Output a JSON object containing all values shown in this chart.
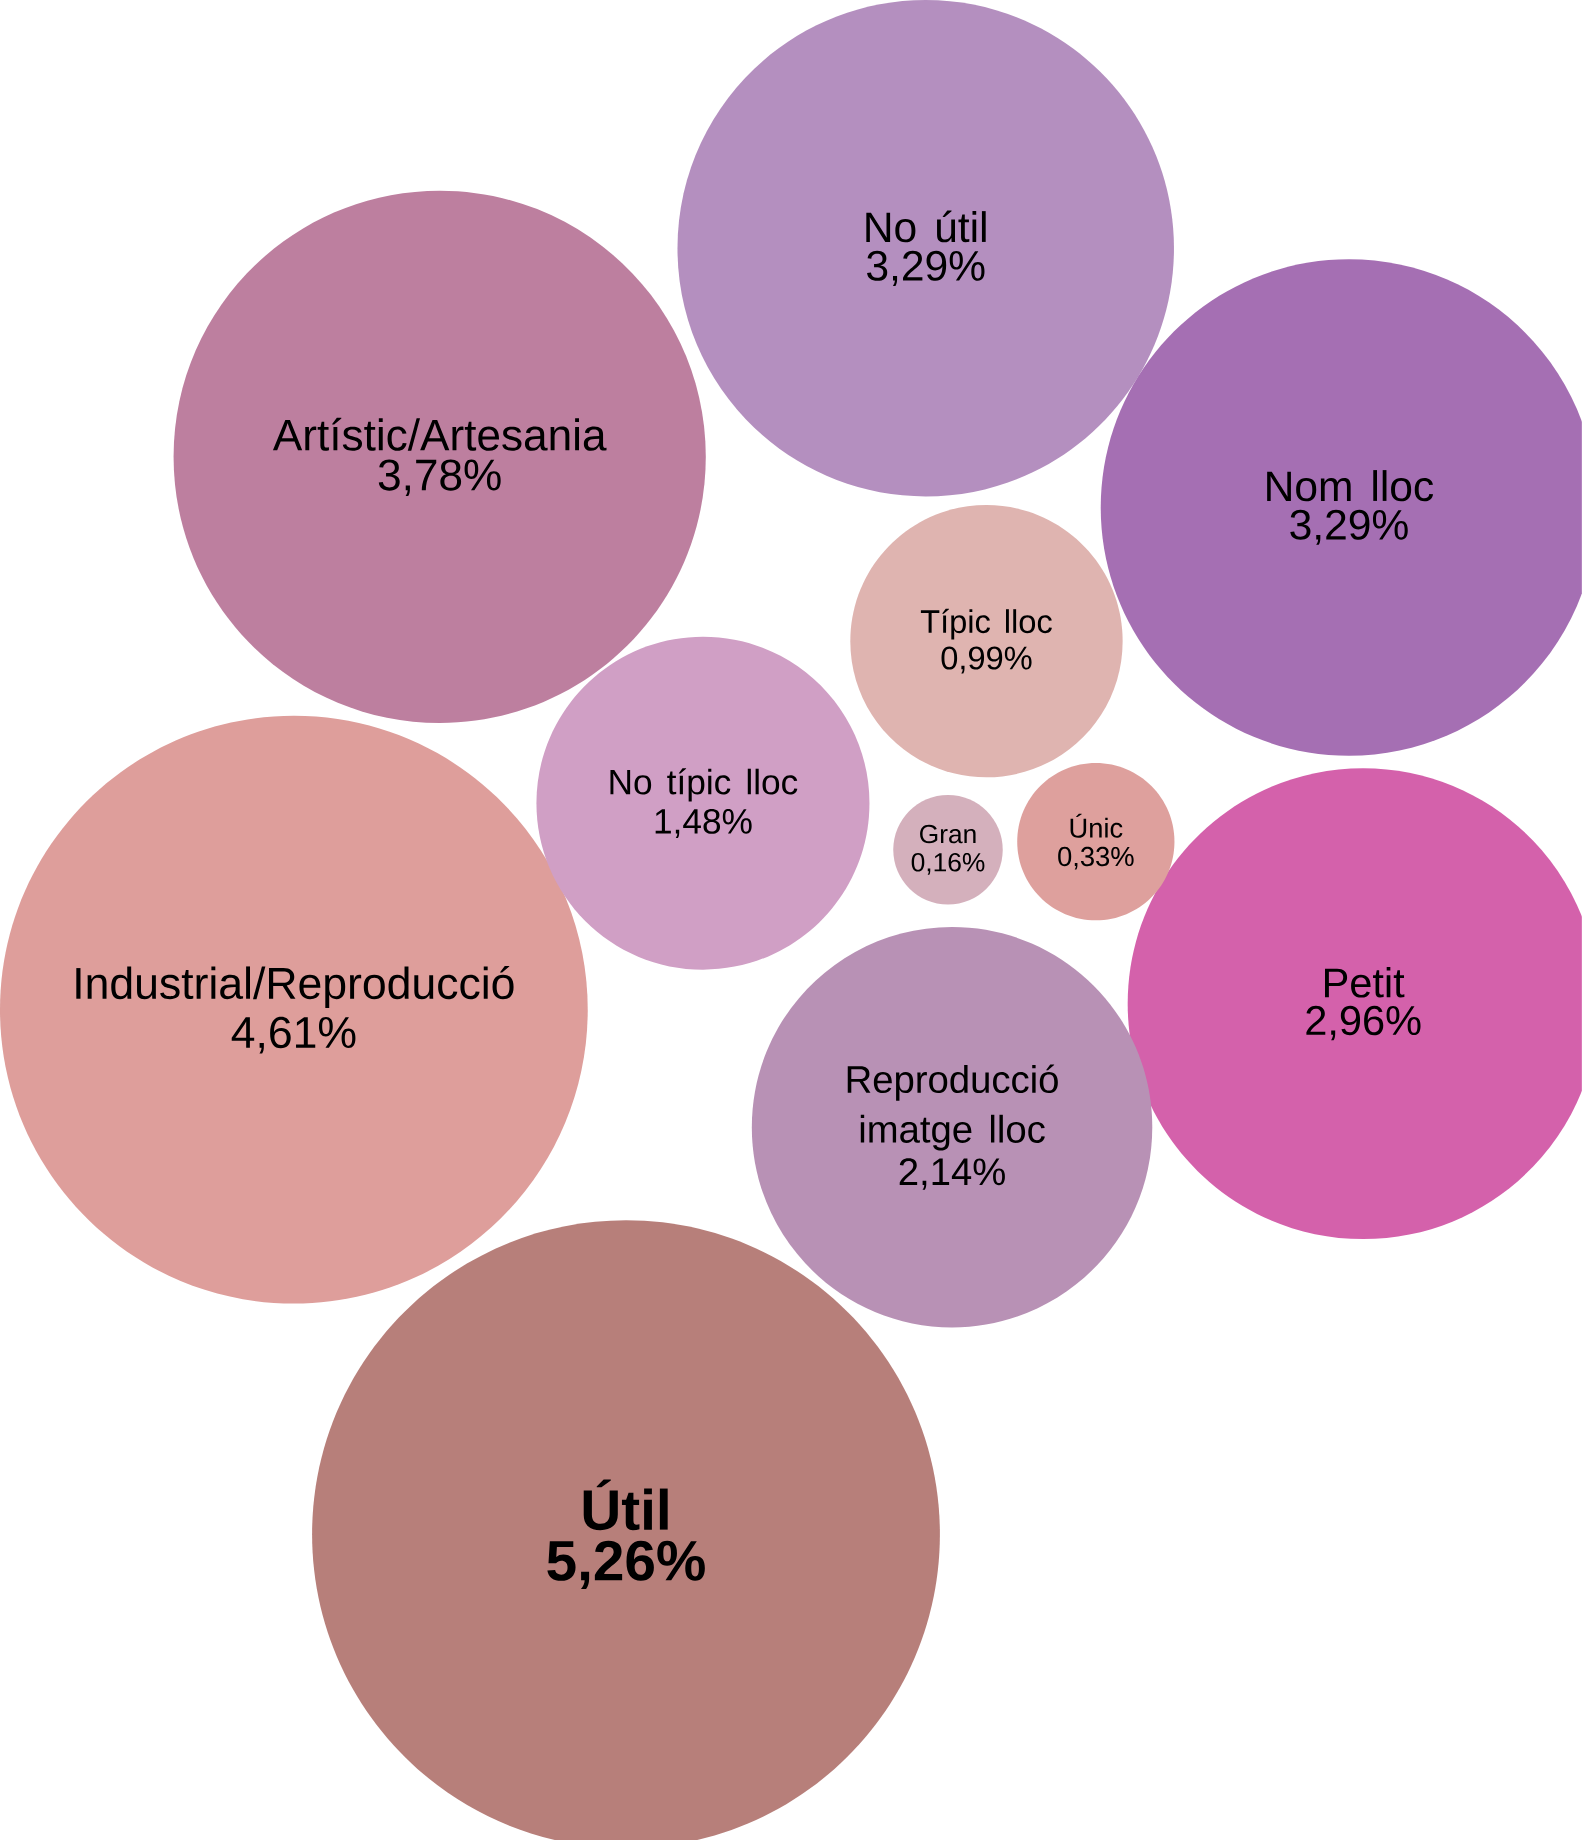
{
  "chart_data": {
    "type": "other",
    "categories": [
      "Útil",
      "Industrial/Reproducció",
      "Artístic/Artesania",
      "No útil",
      "Nom lloc",
      "Petit",
      "Reproducció imatge lloc",
      "No típic lloc",
      "Típic lloc",
      "Gran",
      "Únic"
    ],
    "values": [
      5.26,
      4.61,
      3.78,
      3.29,
      3.29,
      2.96,
      2.14,
      1.48,
      0.99,
      0.16,
      0.33
    ],
    "value_labels": [
      "5,26%",
      "4,61%",
      "3,78%",
      "3,29%",
      "3,29%",
      "2,96%",
      "2,14%",
      "1,48%",
      "0,99%",
      "0,16%",
      "0,33%"
    ],
    "colors": [
      "#b77f7a",
      "#de9e9b",
      "#bd7f9f",
      "#b48fbf",
      "#a56fb3",
      "#d461ab",
      "#b891b5",
      "#d09fc5",
      "#dfb4b0",
      "#d4b0bc",
      "#dea09d"
    ]
  }
}
